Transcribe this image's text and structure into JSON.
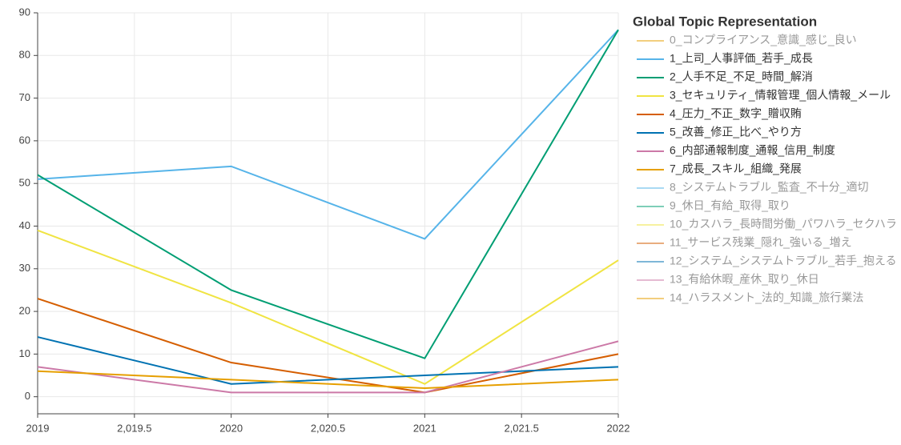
{
  "chart_data": {
    "type": "line",
    "legend_title": "Global Topic Representation",
    "x": [
      2019,
      2020,
      2021,
      2022
    ],
    "xlim": [
      2019,
      2022
    ],
    "xticks": [
      2019,
      {
        "value": 2019.5,
        "label": "2,019.5"
      },
      2020,
      {
        "value": 2020.5,
        "label": "2,020.5"
      },
      2021,
      {
        "value": 2021.5,
        "label": "2,021.5"
      },
      2022
    ],
    "ylim": [
      -4,
      90
    ],
    "yticks": [
      0,
      10,
      20,
      30,
      40,
      50,
      60,
      70,
      80,
      90
    ],
    "grid": true,
    "legend": "right",
    "series": [
      {
        "name": "0_コンプライアンス_意識_感じ_良い",
        "color": "#e69f00",
        "legend_only": true
      },
      {
        "name": "1_上司_人事評価_若手_成長",
        "color": "#56b4e9",
        "values": [
          51,
          54,
          37,
          86
        ]
      },
      {
        "name": "2_人手不足_不足_時間_解消",
        "color": "#009e73",
        "values": [
          52,
          25,
          9,
          86
        ]
      },
      {
        "name": "3_セキュリティ_情報管理_個人情報_メール",
        "color": "#f0e442",
        "values": [
          39,
          22,
          3,
          32
        ]
      },
      {
        "name": "4_圧力_不正_数字_贈収賄",
        "color": "#d55e00",
        "values": [
          23,
          8,
          1,
          10
        ]
      },
      {
        "name": "5_改善_修正_比べ_やり方",
        "color": "#0072b2",
        "values": [
          14,
          3,
          5,
          7
        ]
      },
      {
        "name": "6_内部通報制度_通報_信用_制度",
        "color": "#cc79a7",
        "values": [
          7,
          1,
          1,
          13
        ]
      },
      {
        "name": "7_成長_スキル_組織_発展",
        "color": "#e69f00",
        "values": [
          6,
          4,
          2,
          4
        ]
      },
      {
        "name": "8_システムトラブル_監査_不十分_適切",
        "color": "#56b4e9",
        "legend_only": true
      },
      {
        "name": "9_休日_有給_取得_取り",
        "color": "#009e73",
        "legend_only": true
      },
      {
        "name": "10_カスハラ_長時間労働_パワハラ_セクハラ",
        "color": "#f0e442",
        "legend_only": true
      },
      {
        "name": "11_サービス残業_隠れ_強いる_増え",
        "color": "#d55e00",
        "legend_only": true
      },
      {
        "name": "12_システム_システムトラブル_若手_抱える",
        "color": "#0072b2",
        "legend_only": true
      },
      {
        "name": "13_有給休暇_産休_取り_休日",
        "color": "#cc79a7",
        "legend_only": true
      },
      {
        "name": "14_ハラスメント_法的_知識_旅行業法",
        "color": "#e69f00",
        "legend_only": true
      }
    ]
  }
}
